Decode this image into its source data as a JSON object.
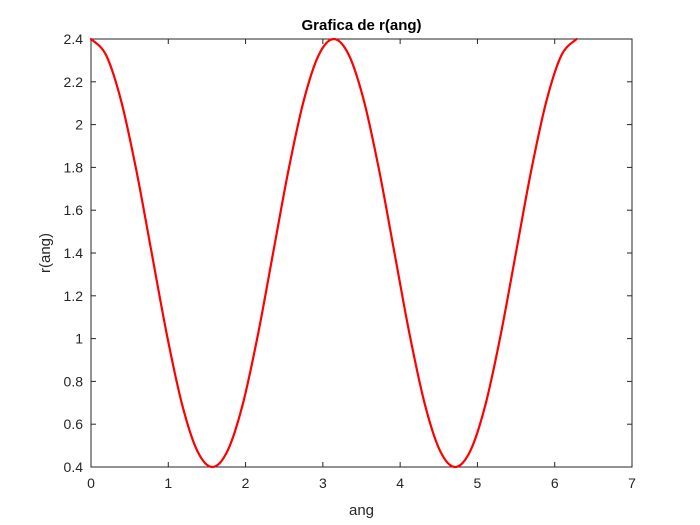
{
  "chart_data": {
    "type": "line",
    "title": "Grafica de r(ang)",
    "xlabel": "ang",
    "ylabel": "r(ang)",
    "xlim": [
      0,
      7
    ],
    "ylim": [
      0.4,
      2.4
    ],
    "xticks": [
      "0",
      "1",
      "2",
      "3",
      "4",
      "5",
      "6",
      "7"
    ],
    "yticks": [
      "0.4",
      "0.6",
      "0.8",
      "1",
      "1.2",
      "1.4",
      "1.6",
      "1.8",
      "2",
      "2.2",
      "2.4"
    ],
    "grid": false,
    "series": [
      {
        "color": "#ff0000",
        "x": [
          0,
          0.1963,
          0.3927,
          0.589,
          0.7854,
          0.9817,
          1.1781,
          1.3744,
          1.5708,
          1.7671,
          1.9635,
          2.1598,
          2.3562,
          2.5525,
          2.7489,
          2.9452,
          3.1416,
          3.3379,
          3.5343,
          3.7306,
          3.927,
          4.1233,
          4.3197,
          4.516,
          4.7124,
          4.9087,
          5.1051,
          5.3014,
          5.4978,
          5.6941,
          5.8905,
          6.0868,
          6.2832
        ],
        "y": [
          2.4,
          2.324,
          2.107,
          1.782,
          1.4,
          1.018,
          0.693,
          0.476,
          0.4,
          0.476,
          0.693,
          1.018,
          1.4,
          1.782,
          2.107,
          2.324,
          2.4,
          2.324,
          2.107,
          1.782,
          1.4,
          1.018,
          0.693,
          0.476,
          0.4,
          0.476,
          0.693,
          1.018,
          1.4,
          1.782,
          2.107,
          2.324,
          2.4
        ]
      }
    ]
  }
}
